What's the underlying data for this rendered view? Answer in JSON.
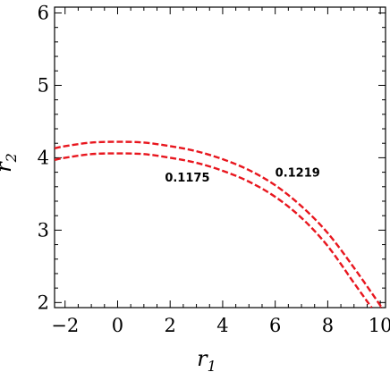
{
  "chart_data": {
    "type": "line",
    "title": "",
    "xlabel": "r1",
    "ylabel": "r2",
    "xlabel_main": "r",
    "xlabel_sub": "1",
    "ylabel_main": "r",
    "ylabel_sub": "2",
    "xlim": [
      -2.4,
      10.2
    ],
    "ylim": [
      1.93,
      6.08
    ],
    "xticks": [
      -2,
      0,
      2,
      4,
      6,
      8,
      10
    ],
    "yticks": [
      2,
      3,
      4,
      5,
      6
    ],
    "xtick_labels": [
      "−2",
      "0",
      "2",
      "4",
      "6",
      "8",
      "10"
    ],
    "ytick_labels": [
      "2",
      "3",
      "4",
      "5",
      "6"
    ],
    "grid": false,
    "line_color": "#e8161e",
    "series": [
      {
        "name": "0.1219",
        "x": [
          -2.4,
          -2,
          -1,
          0,
          1,
          2,
          3,
          4,
          5,
          6,
          7,
          8,
          9,
          10,
          10.03
        ],
        "y": [
          4.13,
          4.16,
          4.21,
          4.22,
          4.21,
          4.16,
          4.09,
          3.98,
          3.83,
          3.62,
          3.33,
          2.96,
          2.48,
          1.96,
          1.93
        ]
      },
      {
        "name": "0.1175",
        "x": [
          -2.4,
          -2,
          -1,
          0,
          1,
          2,
          3,
          4,
          5,
          6,
          7,
          8,
          9,
          9.67
        ],
        "y": [
          3.97,
          4.0,
          4.05,
          4.06,
          4.05,
          4.0,
          3.93,
          3.82,
          3.67,
          3.46,
          3.17,
          2.78,
          2.27,
          1.93
        ]
      }
    ],
    "annotations": [
      {
        "text": "0.1219",
        "x": 6.0,
        "y": 3.74
      },
      {
        "text": "0.1175",
        "x": 1.8,
        "y": 3.67
      }
    ]
  }
}
